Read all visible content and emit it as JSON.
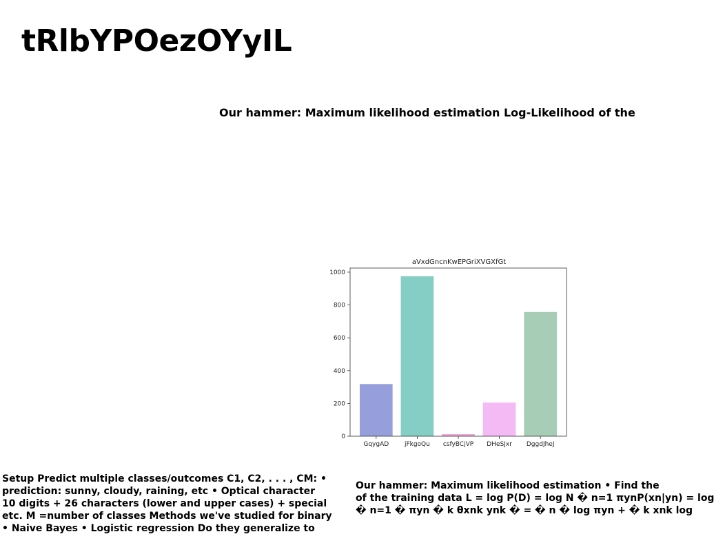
{
  "title": "tRlbYPOezOYyIL",
  "subtitle": "Our hammer: Maximum likelihood estimation Log-Likelihood of the",
  "chart_data": {
    "type": "bar",
    "title": "aVxdGncnKwEPGriXVGXfGt",
    "xlabel": "",
    "ylabel": "",
    "categories": [
      "GqygAD",
      "jFkgoQu",
      "csfyBCjVP",
      "DHeSJxr",
      "DggdJheJ"
    ],
    "values": [
      318,
      975,
      12,
      205,
      757
    ],
    "colors": [
      "#969fdb",
      "#84cec5",
      "#ee9ed0",
      "#f4baf4",
      "#a8cdb7"
    ],
    "ylim": [
      0,
      1025
    ],
    "yticks": [
      0,
      200,
      400,
      600,
      800,
      1000
    ],
    "grid": false
  },
  "text_left": [
    "Setup Predict multiple classes/outcomes C1, C2, . . . , CM: •",
    "prediction: sunny, cloudy, raining, etc • Optical character",
    "10 digits + 26 characters (lower and upper cases) + special",
    "etc. M =number of classes Methods we've studied for binary",
    "• Naive Bayes • Logistic regression Do they generalize to"
  ],
  "text_right": [
    "Our hammer: Maximum likelihood estimation • Find the",
    "of the training data L = log P(D) = log N � n=1 πynP(xn|yn) = log",
    "� n=1 � πyn � k θxnk ynk � = � n � log πyn + � k xnk log"
  ]
}
